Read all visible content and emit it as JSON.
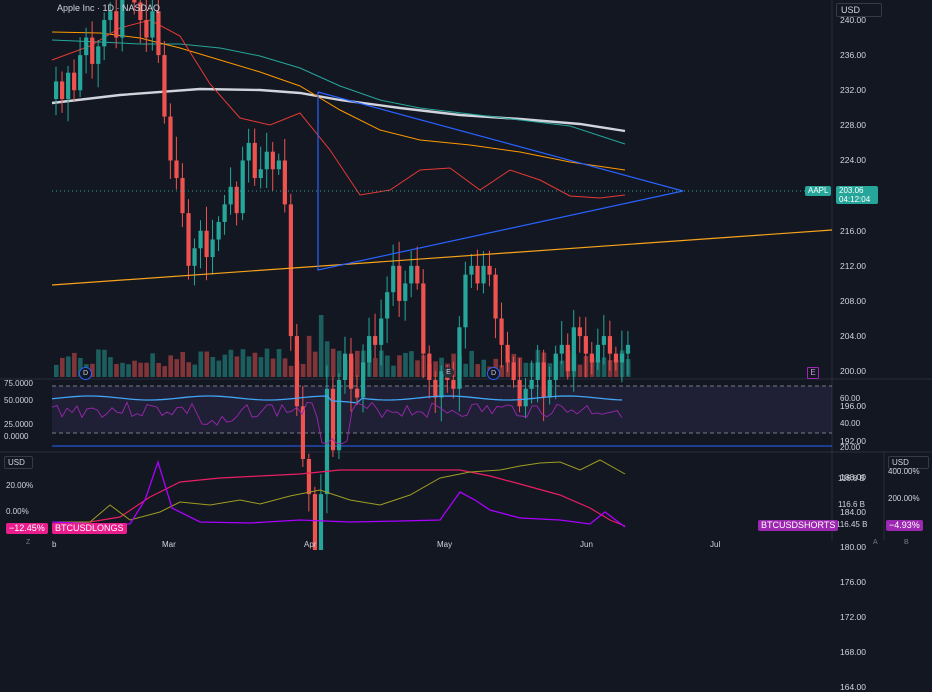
{
  "header": {
    "symbol_title": "Apple Inc · 1D · NASDAQ"
  },
  "price_axis": {
    "currency": "USD",
    "labels": [
      "240.00",
      "236.00",
      "232.00",
      "228.00",
      "224.00",
      "220.00",
      "216.00",
      "212.00",
      "208.00",
      "204.00",
      "200.00",
      "196.00",
      "192.00",
      "188.00",
      "184.00",
      "180.00",
      "176.00",
      "172.00",
      "168.00",
      "164.00"
    ]
  },
  "last_price": {
    "symbol": "AAPL",
    "price": "203.06",
    "countdown": "04:12:04",
    "color": "#26a69a"
  },
  "time_axis": {
    "labels": [
      "b",
      "Mar",
      "Apr",
      "May",
      "Jun",
      "Jul"
    ]
  },
  "rsi_pane": {
    "left_labels": [
      "75.0000",
      "50.0000",
      "25.0000",
      "0.0000"
    ],
    "right_labels": [
      "60.00",
      "40.00",
      "20.00"
    ]
  },
  "bottom_pane": {
    "left_currency": "USD",
    "right_currency": "USD",
    "left_labels": [
      "20.00%",
      "0.00%"
    ],
    "left_tag_value": "−12.45%",
    "left_tag_name": "BTCUSDLONGS",
    "mid_right_labels": [
      "116.8 B",
      "116.6 B",
      "116.45 B"
    ],
    "right_labels": [
      "400.00%",
      "200.00%"
    ],
    "right_tag_name": "BTCUSDSHORTS",
    "right_tag_value": "−4.93%"
  },
  "event_markers": {
    "dividend": "D",
    "earnings": "E",
    "future_earnings": "E"
  },
  "footer": {
    "left": "Z",
    "right_a": "A",
    "right_b": "B"
  },
  "colors": {
    "up": "#26a69a",
    "down": "#ef5350",
    "background": "#131722",
    "triangle": "#2962ff",
    "trendline": "#f7a21b",
    "ma200": "#d1d4dc",
    "ma_red": "#e53935",
    "ma_orange": "#ff9800",
    "ma_green": "#26a69a",
    "rsi": "#42a5f5",
    "pink": "#e91e63",
    "olive": "#9e9d24",
    "purple": "#aa00ff"
  }
}
